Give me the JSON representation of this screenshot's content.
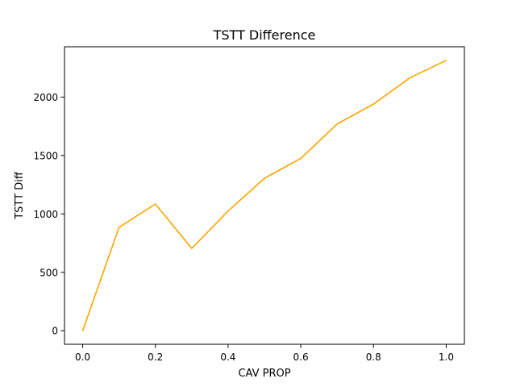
{
  "chart_data": {
    "type": "line",
    "title": "TSTT Difference",
    "xlabel": "CAV PROP",
    "ylabel": "TSTT Diff",
    "x": [
      0.0,
      0.1,
      0.2,
      0.3,
      0.4,
      0.5,
      0.6,
      0.7,
      0.8,
      0.9,
      1.0
    ],
    "series": [
      {
        "values": [
          0,
          885,
          1085,
          705,
          1025,
          1305,
          1475,
          1770,
          1940,
          2165,
          2315
        ],
        "color": "#ffa500"
      }
    ],
    "xlim": [
      -0.05,
      1.05
    ],
    "ylim": [
      -116,
      2431
    ],
    "xticks": [
      0.0,
      0.2,
      0.4,
      0.6,
      0.8,
      1.0
    ],
    "xtick_labels": [
      "0.0",
      "0.2",
      "0.4",
      "0.6",
      "0.8",
      "1.0"
    ],
    "yticks": [
      0,
      500,
      1000,
      1500,
      2000
    ],
    "ytick_labels": [
      "0",
      "500",
      "1000",
      "1500",
      "2000"
    ],
    "grid": false,
    "legend": "none"
  }
}
